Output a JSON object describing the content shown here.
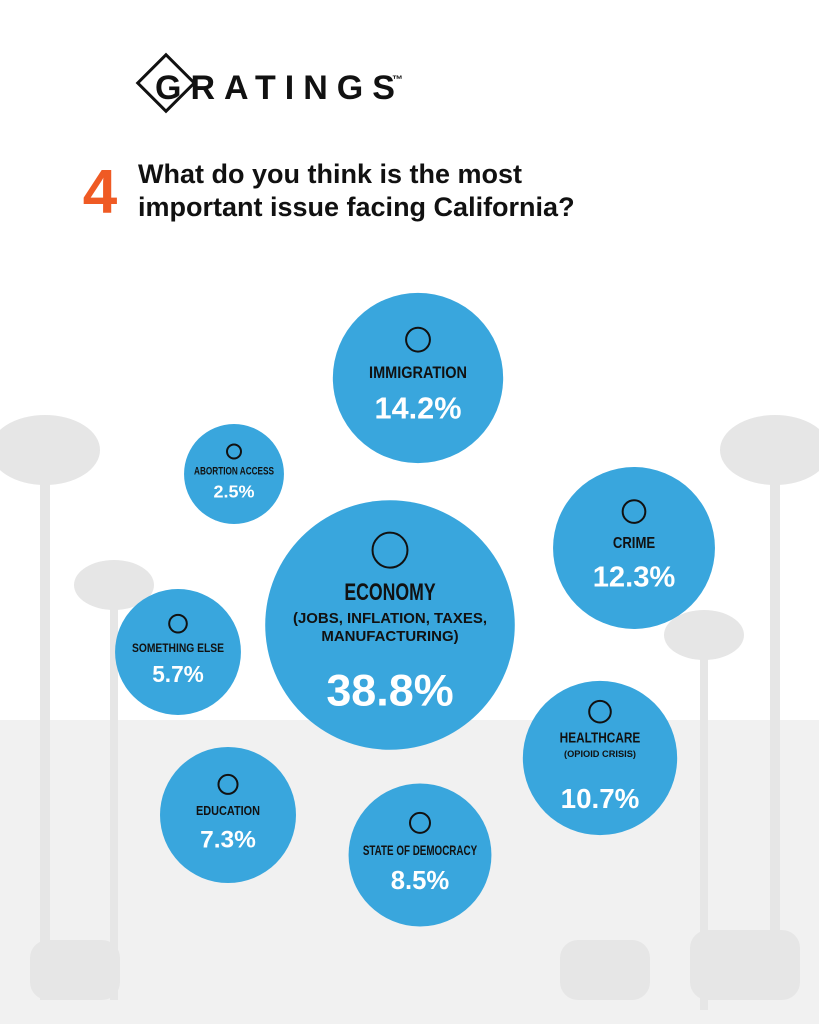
{
  "brand": "GRATINGS",
  "brand_mark": "™",
  "question_number": "4",
  "chart_data": {
    "type": "bubble",
    "title": "What do you think is the most important issue facing California?",
    "categories": [
      "IMMIGRATION",
      "ABORTION ACCESS",
      "CRIME",
      "SOMETHING ELSE",
      "ECONOMY",
      "HEALTHCARE",
      "EDUCATION",
      "STATE OF DEMOCRACY"
    ],
    "category_notes": [
      null,
      null,
      null,
      null,
      "(JOBS, INFLATION, TAXES, MANUFACTURING)",
      "(OPIOID CRISIS)",
      null,
      null
    ],
    "values": [
      14.2,
      2.5,
      12.3,
      5.7,
      38.8,
      10.7,
      7.3,
      8.5
    ],
    "value_labels": [
      "14.2%",
      "2.5%",
      "12.3%",
      "5.7%",
      "38.8%",
      "10.7%",
      "7.3%",
      "8.5%"
    ],
    "color": "#39a6dd"
  }
}
